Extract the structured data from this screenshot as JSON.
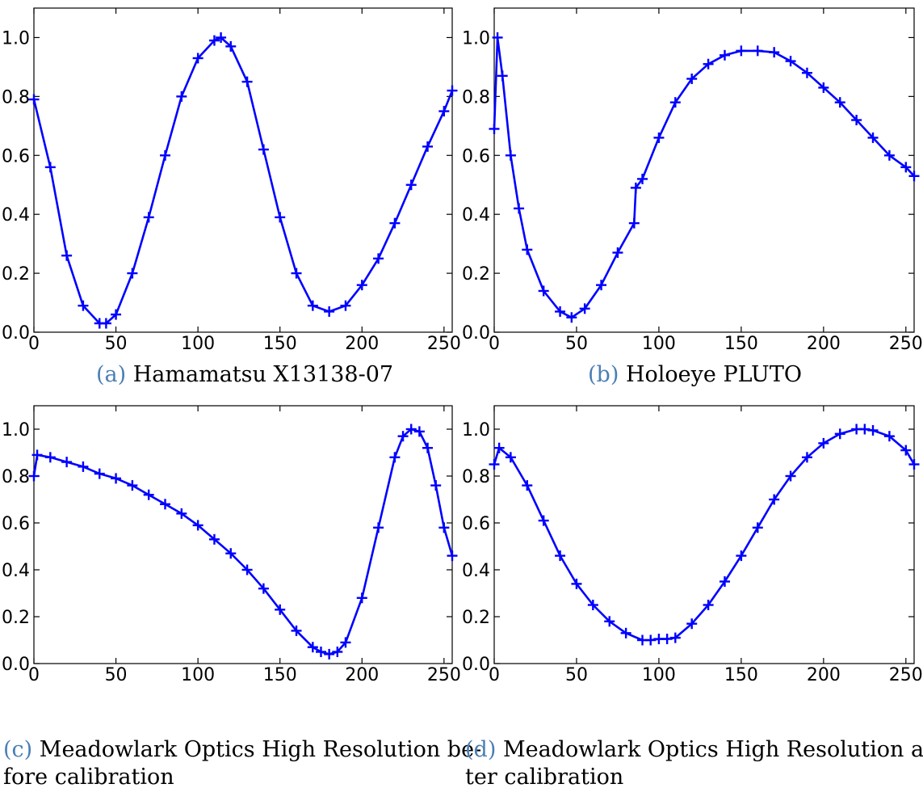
{
  "figure": {
    "panels": [
      {
        "tag": "(a)",
        "caption_line1": "Hamamatsu X13138-07",
        "caption_line2": ""
      },
      {
        "tag": "(b)",
        "caption_line1": "Holoeye PLUTO",
        "caption_line2": ""
      },
      {
        "tag": "(c)",
        "caption_line1": "Meadowlark Optics High Resolution be-",
        "caption_line2": "fore calibration"
      },
      {
        "tag": "(d)",
        "caption_line1": "Meadowlark Optics High Resolution af-",
        "caption_line2": "ter calibration"
      }
    ]
  },
  "chart_data": [
    {
      "type": "line",
      "title": "",
      "xlabel": "",
      "ylabel": "",
      "xlim": [
        0,
        255
      ],
      "ylim": [
        0,
        1.1
      ],
      "xticks": [
        0,
        50,
        100,
        150,
        200,
        250
      ],
      "yticks": [
        0.0,
        0.2,
        0.4,
        0.6,
        0.8,
        1.0
      ],
      "x_tick_labels": [
        "0",
        "50",
        "100",
        "150",
        "200",
        "250"
      ],
      "y_tick_labels": [
        "0.0",
        "0.2",
        "0.4",
        "0.6",
        "0.8",
        "1.0"
      ],
      "grid": false,
      "marker": "+",
      "color": "#0000ff",
      "x": [
        0,
        10,
        20,
        30,
        40,
        44,
        50,
        60,
        70,
        80,
        90,
        100,
        110,
        114,
        120,
        130,
        140,
        150,
        160,
        170,
        180,
        190,
        200,
        210,
        220,
        230,
        240,
        250,
        255
      ],
      "y": [
        0.79,
        0.56,
        0.26,
        0.09,
        0.03,
        0.03,
        0.06,
        0.2,
        0.39,
        0.6,
        0.8,
        0.93,
        0.99,
        1.0,
        0.97,
        0.85,
        0.62,
        0.39,
        0.2,
        0.09,
        0.07,
        0.09,
        0.16,
        0.25,
        0.37,
        0.5,
        0.63,
        0.75,
        0.82
      ]
    },
    {
      "type": "line",
      "title": "",
      "xlabel": "",
      "ylabel": "",
      "xlim": [
        0,
        255
      ],
      "ylim": [
        0,
        1.1
      ],
      "xticks": [
        0,
        50,
        100,
        150,
        200,
        250
      ],
      "yticks": [
        0.0,
        0.2,
        0.4,
        0.6,
        0.8,
        1.0
      ],
      "x_tick_labels": [
        "0",
        "50",
        "100",
        "150",
        "200",
        "250"
      ],
      "y_tick_labels": [
        "0.0",
        "0.2",
        "0.4",
        "0.6",
        "0.8",
        "1.0"
      ],
      "grid": false,
      "marker": "+",
      "color": "#0000ff",
      "x": [
        0,
        2,
        5,
        10,
        15,
        20,
        30,
        40,
        47,
        55,
        65,
        75,
        85,
        86,
        90,
        100,
        110,
        120,
        130,
        140,
        150,
        160,
        170,
        180,
        190,
        200,
        210,
        220,
        230,
        240,
        250,
        255
      ],
      "y": [
        0.69,
        1.0,
        0.87,
        0.6,
        0.42,
        0.28,
        0.14,
        0.07,
        0.05,
        0.08,
        0.16,
        0.27,
        0.37,
        0.49,
        0.52,
        0.66,
        0.78,
        0.86,
        0.91,
        0.94,
        0.955,
        0.955,
        0.95,
        0.92,
        0.88,
        0.83,
        0.78,
        0.72,
        0.66,
        0.6,
        0.56,
        0.53
      ]
    },
    {
      "type": "line",
      "title": "",
      "xlabel": "",
      "ylabel": "",
      "xlim": [
        0,
        255
      ],
      "ylim": [
        0,
        1.1
      ],
      "xticks": [
        0,
        50,
        100,
        150,
        200,
        250
      ],
      "yticks": [
        0.0,
        0.2,
        0.4,
        0.6,
        0.8,
        1.0
      ],
      "x_tick_labels": [
        "0",
        "50",
        "100",
        "150",
        "200",
        "250"
      ],
      "y_tick_labels": [
        "0.0",
        "0.2",
        "0.4",
        "0.6",
        "0.8",
        "1.0"
      ],
      "grid": false,
      "marker": "+",
      "color": "#0000ff",
      "x": [
        0,
        2,
        10,
        20,
        30,
        40,
        50,
        60,
        70,
        80,
        90,
        100,
        110,
        120,
        130,
        140,
        150,
        160,
        170,
        175,
        180,
        185,
        190,
        200,
        210,
        220,
        225,
        230,
        235,
        240,
        245,
        250,
        255
      ],
      "y": [
        0.8,
        0.89,
        0.88,
        0.86,
        0.84,
        0.81,
        0.79,
        0.76,
        0.72,
        0.68,
        0.64,
        0.59,
        0.53,
        0.47,
        0.4,
        0.32,
        0.23,
        0.14,
        0.07,
        0.05,
        0.04,
        0.05,
        0.09,
        0.28,
        0.58,
        0.88,
        0.97,
        1.0,
        0.99,
        0.92,
        0.76,
        0.58,
        0.46
      ]
    },
    {
      "type": "line",
      "title": "",
      "xlabel": "",
      "ylabel": "",
      "xlim": [
        0,
        255
      ],
      "ylim": [
        0,
        1.1
      ],
      "xticks": [
        0,
        50,
        100,
        150,
        200,
        250
      ],
      "yticks": [
        0.0,
        0.2,
        0.4,
        0.6,
        0.8,
        1.0
      ],
      "x_tick_labels": [
        "0",
        "50",
        "100",
        "150",
        "200",
        "250"
      ],
      "y_tick_labels": [
        "0.0",
        "0.2",
        "0.4",
        "0.6",
        "0.8",
        "1.0"
      ],
      "grid": false,
      "marker": "+",
      "color": "#0000ff",
      "x": [
        0,
        3,
        10,
        20,
        30,
        40,
        50,
        60,
        70,
        80,
        90,
        95,
        100,
        105,
        110,
        120,
        130,
        140,
        150,
        160,
        170,
        180,
        190,
        200,
        210,
        220,
        225,
        230,
        240,
        250,
        255
      ],
      "y": [
        0.85,
        0.92,
        0.88,
        0.76,
        0.61,
        0.46,
        0.34,
        0.25,
        0.18,
        0.13,
        0.1,
        0.1,
        0.105,
        0.105,
        0.11,
        0.17,
        0.25,
        0.35,
        0.46,
        0.58,
        0.7,
        0.8,
        0.88,
        0.94,
        0.98,
        1.0,
        1.0,
        0.995,
        0.97,
        0.91,
        0.85
      ]
    }
  ]
}
